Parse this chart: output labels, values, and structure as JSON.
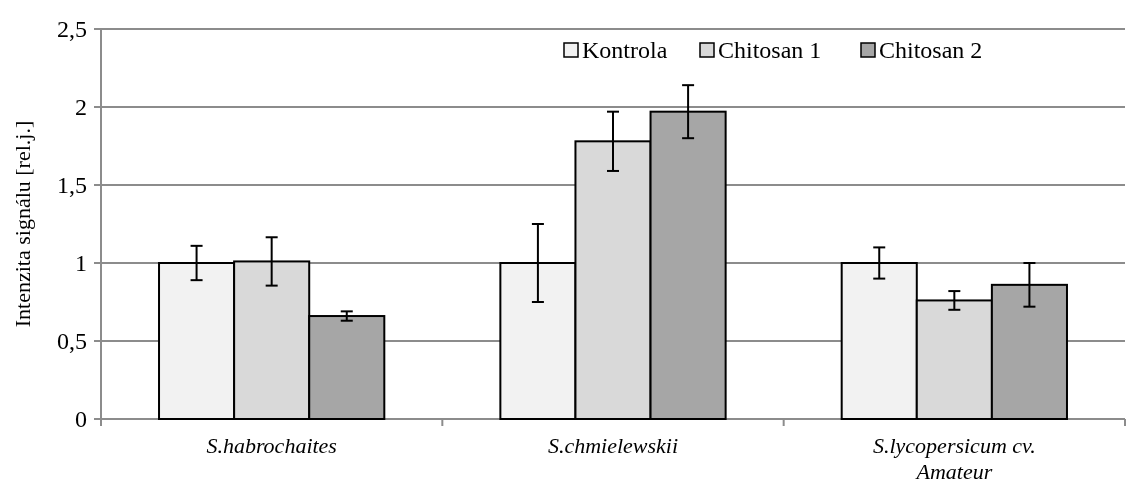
{
  "chart_data": {
    "type": "bar",
    "ylabel": "Intenzita signálu [rel.j.]",
    "categories": [
      "S.habrochaites",
      "S.chmielewskii",
      "S.lycopersicum cv. Amateur"
    ],
    "series": [
      {
        "name": "Kontrola",
        "color": "#f2f2f2",
        "values": [
          1.0,
          1.0,
          1.0
        ],
        "errors": [
          0.11,
          0.25,
          0.1
        ]
      },
      {
        "name": "Chitosan 1",
        "color": "#d9d9d9",
        "values": [
          1.01,
          1.78,
          0.76
        ],
        "errors": [
          0.155,
          0.19,
          0.06
        ]
      },
      {
        "name": "Chitosan 2",
        "color": "#a6a6a6",
        "values": [
          0.66,
          1.97,
          0.86
        ],
        "errors": [
          0.03,
          0.17,
          0.14
        ]
      }
    ],
    "ylim": [
      0,
      2.5
    ],
    "yticks": [
      {
        "value": 0,
        "label": "0"
      },
      {
        "value": 0.5,
        "label": "0,5"
      },
      {
        "value": 1,
        "label": "1"
      },
      {
        "value": 1.5,
        "label": "1,5"
      },
      {
        "value": 2,
        "label": "2"
      },
      {
        "value": 2.5,
        "label": "2,5"
      }
    ],
    "grid": "y",
    "legend": "top"
  }
}
